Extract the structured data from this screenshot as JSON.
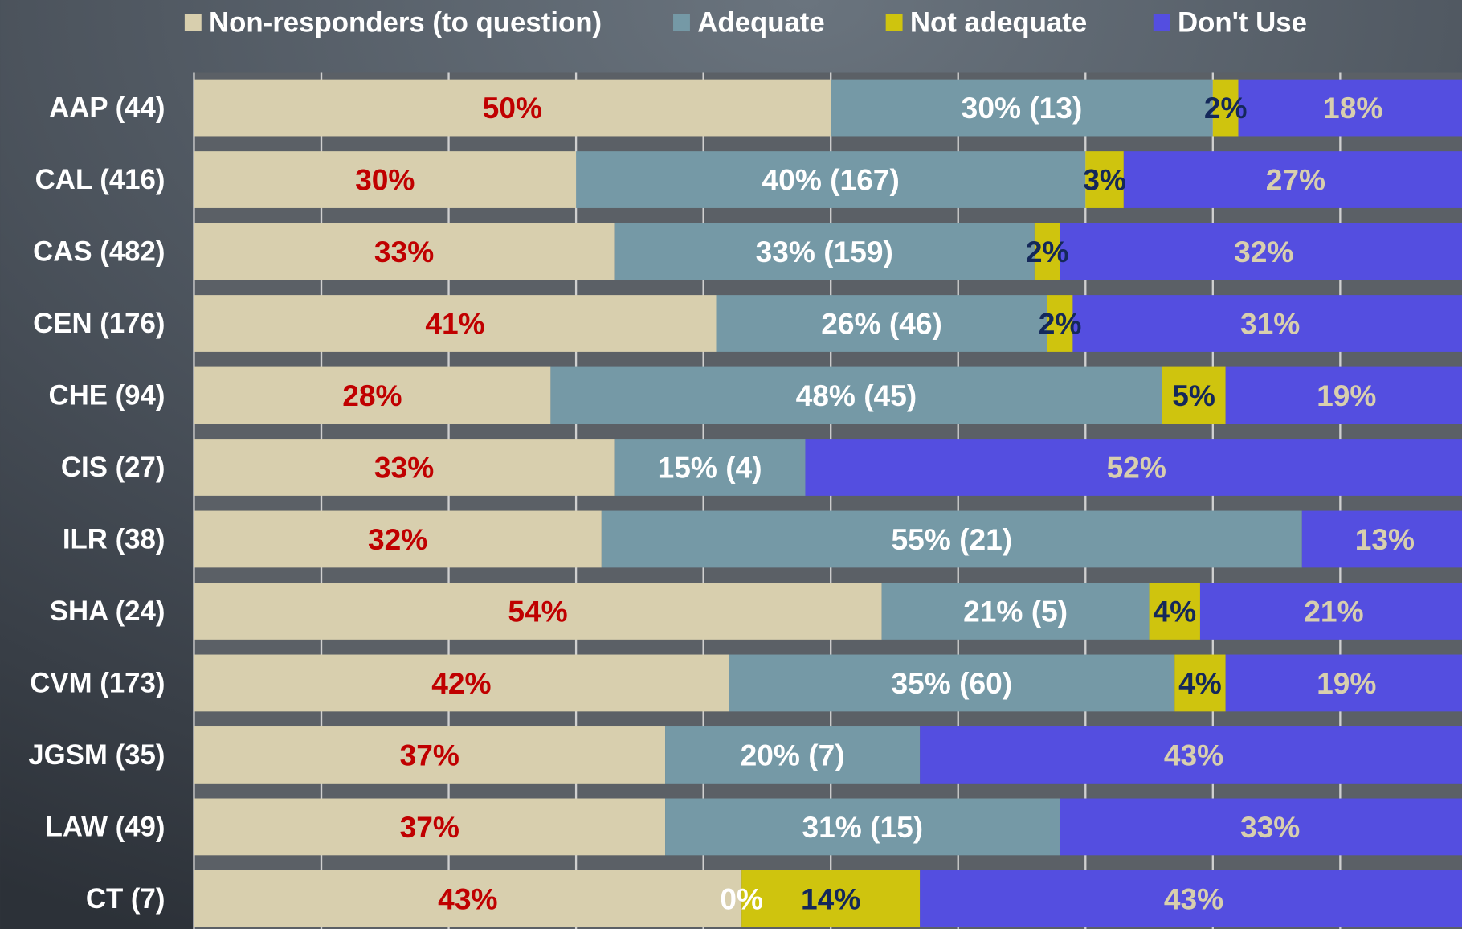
{
  "chart_data": {
    "type": "stacked_bar_horizontal",
    "categories": [
      "AAP (44)",
      "CAL (416)",
      "CAS (482)",
      "CEN (176)",
      "CHE (94)",
      "CIS (27)",
      "ILR (38)",
      "SHA (24)",
      "CVM (173)",
      "JGSM (35)",
      "LAW (49)",
      "CT (7)"
    ],
    "series": [
      {
        "name": "Non-responders (to question)",
        "color": "#d8cfae",
        "label_color": "#c00000",
        "values": [
          50,
          30,
          33,
          41,
          28,
          33,
          32,
          54,
          42,
          37,
          37,
          43
        ],
        "value_labels": [
          "50%",
          "30%",
          "33%",
          "41%",
          "28%",
          "33%",
          "32%",
          "54%",
          "42%",
          "37%",
          "37%",
          "43%"
        ]
      },
      {
        "name": "Adequate",
        "color": "#7599a6",
        "label_color": "#ffffff",
        "values": [
          30,
          40,
          33,
          26,
          48,
          15,
          55,
          21,
          35,
          20,
          31,
          0
        ],
        "value_labels": [
          "30% (13)",
          "40% (167)",
          "33% (159)",
          "26% (46)",
          "48% (45)",
          "15% (4)",
          "55% (21)",
          "21% (5)",
          "35% (60)",
          "20% (7)",
          "31% (15)",
          "0%"
        ]
      },
      {
        "name": "Not adequate",
        "color": "#cfc40e",
        "label_color": "#14285a",
        "values": [
          2,
          3,
          2,
          2,
          5,
          0,
          0,
          4,
          4,
          0,
          0,
          14
        ],
        "value_labels": [
          "2%",
          "3%",
          "2%",
          "2%",
          "5%",
          null,
          null,
          "4%",
          "4%",
          null,
          null,
          "14%"
        ]
      },
      {
        "name": "Don't Use",
        "color": "#544ee0",
        "label_color": "#d8cfae",
        "values": [
          18,
          27,
          32,
          31,
          19,
          52,
          13,
          21,
          19,
          43,
          33,
          43
        ],
        "value_labels": [
          "18%",
          "27%",
          "32%",
          "31%",
          "19%",
          "52%",
          "13%",
          "21%",
          "19%",
          "43%",
          "33%",
          "43%"
        ]
      }
    ],
    "xlim": [
      0,
      100
    ],
    "xticks": [
      0,
      10,
      20,
      30,
      40,
      50,
      60,
      70,
      80,
      90,
      100
    ],
    "grid": true,
    "legend": "top"
  }
}
